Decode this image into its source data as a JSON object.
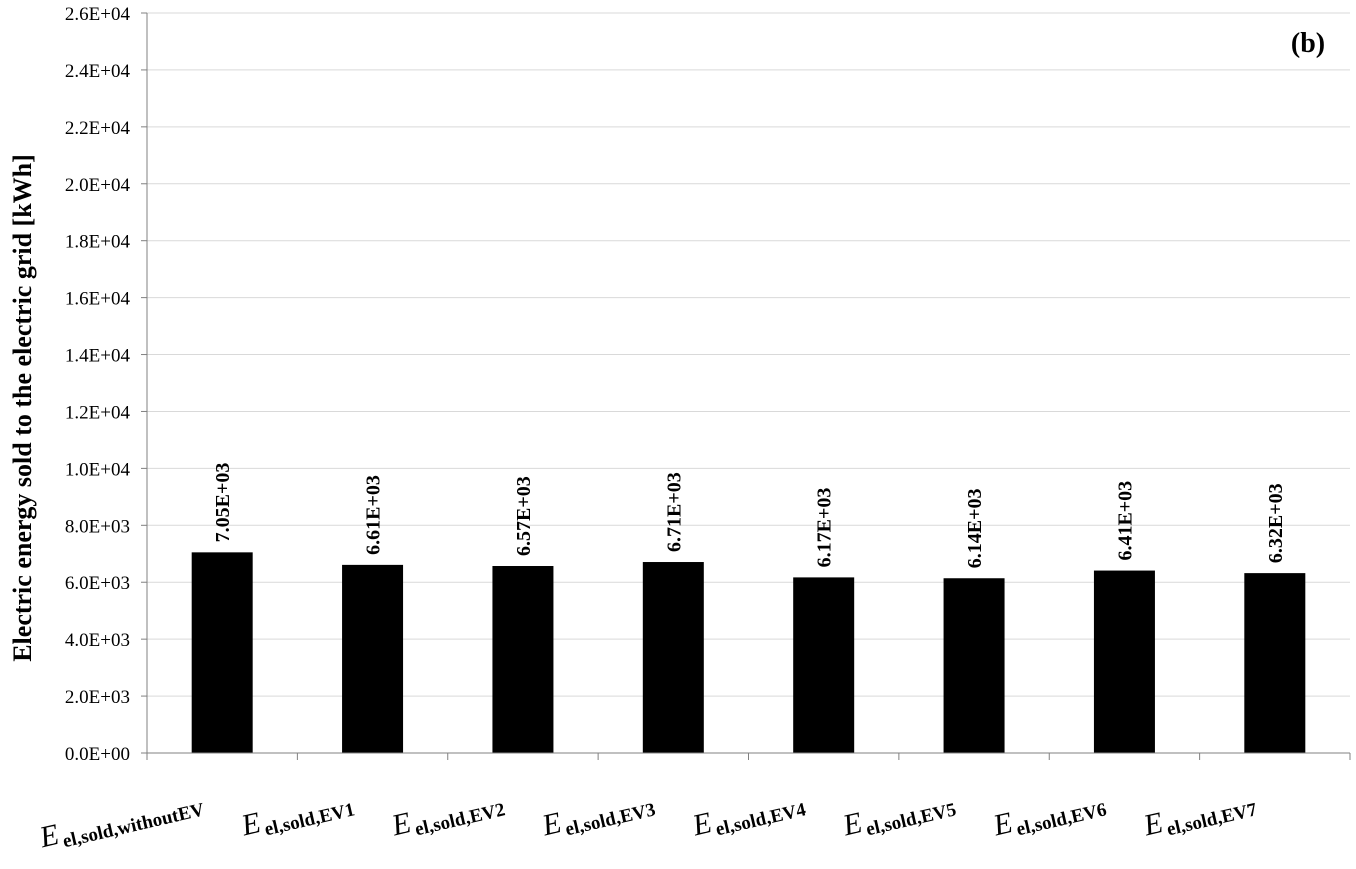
{
  "chart_data": {
    "type": "bar",
    "panel_label": "(b)",
    "ylabel": "Electric energy sold to the electric grid [kWh]",
    "xlabel": "",
    "ylim": [
      0,
      26000
    ],
    "ytick_step": 2000,
    "ytick_labels": [
      "0.0E+00",
      "2.0E+03",
      "4.0E+03",
      "6.0E+03",
      "8.0E+03",
      "1.0E+04",
      "1.2E+04",
      "1.4E+04",
      "1.6E+04",
      "1.8E+04",
      "2.0E+04",
      "2.2E+04",
      "2.4E+04",
      "2.6E+04"
    ],
    "grid": true,
    "categories": [
      {
        "main": "E",
        "sub": "el,sold,withoutEV"
      },
      {
        "main": "E",
        "sub": "el,sold,EV1"
      },
      {
        "main": "E",
        "sub": "el,sold,EV2"
      },
      {
        "main": "E",
        "sub": "el,sold,EV3"
      },
      {
        "main": "E",
        "sub": "el,sold,EV4"
      },
      {
        "main": "E",
        "sub": "el,sold,EV5"
      },
      {
        "main": "E",
        "sub": "el,sold,EV6"
      },
      {
        "main": "E",
        "sub": "el,sold,EV7"
      }
    ],
    "values": [
      7050,
      6610,
      6570,
      6710,
      6170,
      6140,
      6410,
      6320
    ],
    "value_labels": [
      "7.05E+03",
      "6.61E+03",
      "6.57E+03",
      "6.71E+03",
      "6.17E+03",
      "6.14E+03",
      "6.41E+03",
      "6.32E+03"
    ],
    "bar_color": "#000000",
    "grid_color": "#d9d9d9"
  }
}
